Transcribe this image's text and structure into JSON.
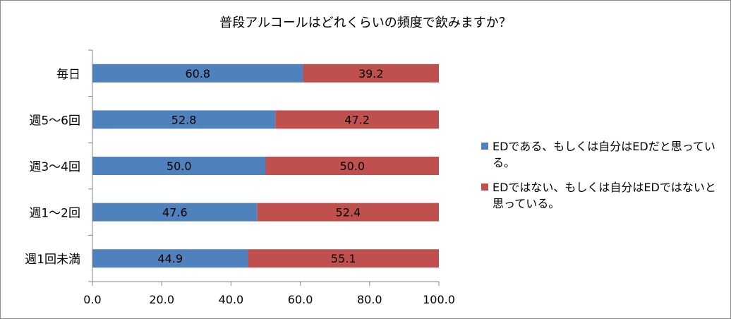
{
  "chart_data": {
    "type": "bar",
    "orientation": "horizontal",
    "stacked": true,
    "title": "普段アルコールはどれくらいの頻度で飲みますか？",
    "categories": [
      "毎日",
      "週5～6回",
      "週3～4回",
      "週1～2回",
      "週1回未満"
    ],
    "series": [
      {
        "name": "EDである、もしくは自分はEDだと思っている。",
        "color": "#4F81BD",
        "values": [
          60.8,
          52.8,
          50.0,
          47.6,
          44.9
        ],
        "labels": [
          "60.8",
          "52.8",
          "50.0",
          "47.6",
          "44.9"
        ]
      },
      {
        "name": "EDではない、もしくは自分はEDではないと思っている。",
        "color": "#C0504D",
        "values": [
          39.2,
          47.2,
          50.0,
          52.4,
          55.1
        ],
        "labels": [
          "39.2",
          "47.2",
          "50.0",
          "52.4",
          "55.1"
        ]
      }
    ],
    "xlim": [
      0,
      100
    ],
    "xticks": [
      "0.0",
      "20.0",
      "40.0",
      "60.0",
      "80.0",
      "100.0"
    ],
    "grid": false,
    "legend_position": "right"
  }
}
